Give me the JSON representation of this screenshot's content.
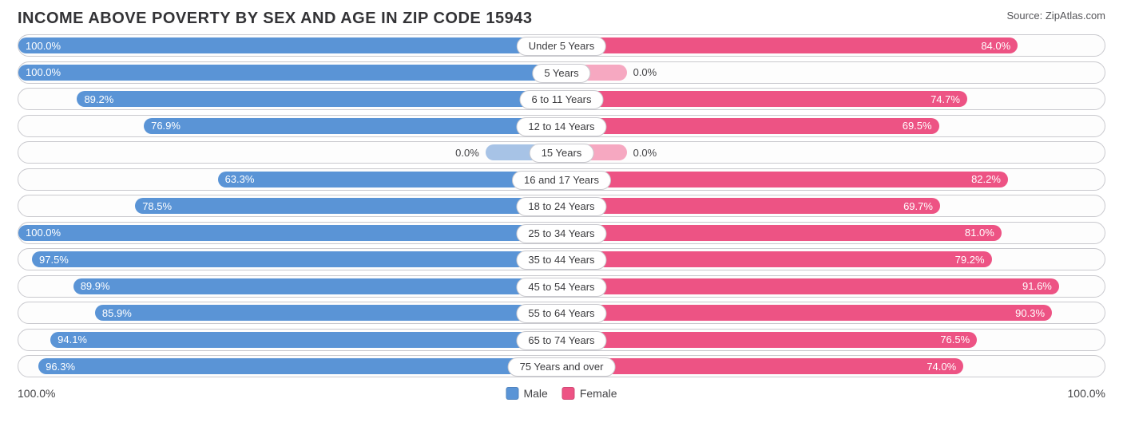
{
  "title": "INCOME ABOVE POVERTY BY SEX AND AGE IN ZIP CODE 15943",
  "source": "Source: ZipAtlas.com",
  "axis": {
    "left_label": "100.0%",
    "right_label": "100.0%",
    "max": 100.0
  },
  "legend": {
    "male": {
      "label": "Male",
      "color": "#5a94d6"
    },
    "female": {
      "label": "Female",
      "color": "#ed5384"
    }
  },
  "style": {
    "row_border_color": "#c9c9ce",
    "row_bg": "#fdfdfd",
    "text_color": "#444447",
    "title_color": "#333336",
    "male_light": "#a7c3e6",
    "female_light": "#f6a8c1",
    "value_inside_threshold": 18.0
  },
  "rows": [
    {
      "label": "Under 5 Years",
      "male": 100.0,
      "female": 84.0,
      "male_txt": "100.0%",
      "female_txt": "84.0%"
    },
    {
      "label": "5 Years",
      "male": 100.0,
      "female": 0.0,
      "male_txt": "100.0%",
      "female_txt": "0.0%",
      "female_stub": 12
    },
    {
      "label": "6 to 11 Years",
      "male": 89.2,
      "female": 74.7,
      "male_txt": "89.2%",
      "female_txt": "74.7%"
    },
    {
      "label": "12 to 14 Years",
      "male": 76.9,
      "female": 69.5,
      "male_txt": "76.9%",
      "female_txt": "69.5%"
    },
    {
      "label": "15 Years",
      "male": 0.0,
      "female": 0.0,
      "male_txt": "0.0%",
      "female_txt": "0.0%",
      "male_stub": 14,
      "female_stub": 12
    },
    {
      "label": "16 and 17 Years",
      "male": 63.3,
      "female": 82.2,
      "male_txt": "63.3%",
      "female_txt": "82.2%"
    },
    {
      "label": "18 to 24 Years",
      "male": 78.5,
      "female": 69.7,
      "male_txt": "78.5%",
      "female_txt": "69.7%"
    },
    {
      "label": "25 to 34 Years",
      "male": 100.0,
      "female": 81.0,
      "male_txt": "100.0%",
      "female_txt": "81.0%"
    },
    {
      "label": "35 to 44 Years",
      "male": 97.5,
      "female": 79.2,
      "male_txt": "97.5%",
      "female_txt": "79.2%"
    },
    {
      "label": "45 to 54 Years",
      "male": 89.9,
      "female": 91.6,
      "male_txt": "89.9%",
      "female_txt": "91.6%"
    },
    {
      "label": "55 to 64 Years",
      "male": 85.9,
      "female": 90.3,
      "male_txt": "85.9%",
      "female_txt": "90.3%"
    },
    {
      "label": "65 to 74 Years",
      "male": 94.1,
      "female": 76.5,
      "male_txt": "94.1%",
      "female_txt": "76.5%"
    },
    {
      "label": "75 Years and over",
      "male": 96.3,
      "female": 74.0,
      "male_txt": "96.3%",
      "female_txt": "74.0%"
    }
  ]
}
